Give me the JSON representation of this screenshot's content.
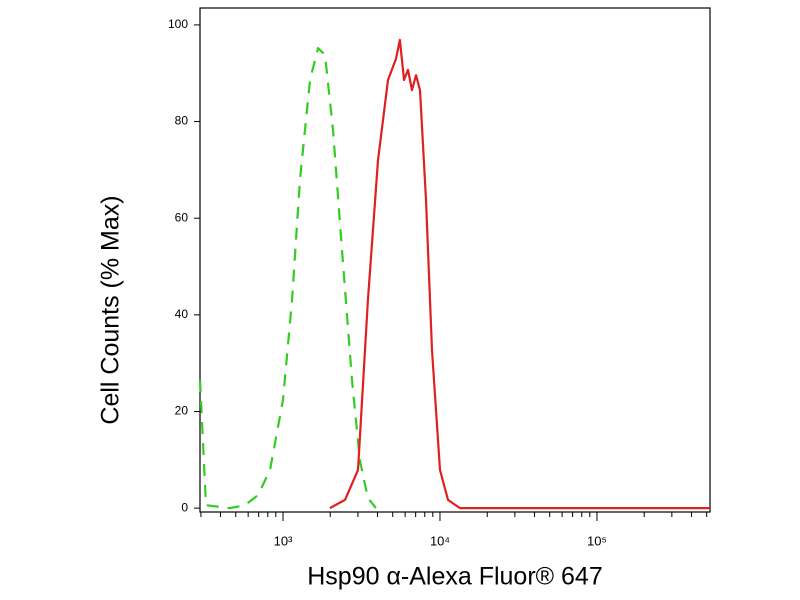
{
  "chart_data": {
    "type": "line",
    "xlabel": "Hsp90 α-Alexa Fluor® 647",
    "ylabel": "Cell Counts (% Max)",
    "xscale": "log",
    "xlim": [
      296,
      525000
    ],
    "ylim": [
      -0.8,
      103.5
    ],
    "xticks": [
      {
        "value": 1000,
        "label": "10³"
      },
      {
        "value": 10000,
        "label": "10⁴"
      },
      {
        "value": 100000,
        "label": "10⁵"
      }
    ],
    "xminorticks": [
      300,
      400,
      500,
      600,
      700,
      800,
      900,
      2000,
      3000,
      4000,
      5000,
      6000,
      7000,
      8000,
      9000,
      20000,
      30000,
      40000,
      50000,
      60000,
      70000,
      80000,
      90000,
      200000,
      300000,
      400000,
      500000
    ],
    "yticks": [
      0,
      20,
      40,
      60,
      80,
      100
    ],
    "series": [
      {
        "color": "#33cc22",
        "dashed": true,
        "x": [
          296,
          309,
          323,
          459,
          573,
          693,
          827,
          1000,
          1141,
          1283,
          1486,
          1670,
          1852,
          2081,
          2375,
          2750,
          3090,
          3475,
          3907
        ],
        "values": [
          26.5,
          14,
          0.6,
          0,
          0.6,
          2.7,
          7.9,
          22.4,
          43,
          68,
          88.6,
          95.2,
          93.8,
          78.3,
          53.4,
          26.5,
          9.9,
          2.1,
          0
        ]
      },
      {
        "color": "#e02020",
        "dashed": false,
        "x": [
          1991,
          2483,
          3005,
          3475,
          4027,
          4667,
          5248,
          5559,
          5902,
          6253,
          6637,
          7035,
          7459,
          8150,
          8892,
          10000,
          11250,
          13400,
          525000
        ],
        "values": [
          0,
          1.7,
          7.9,
          43,
          72,
          88.6,
          93,
          96.9,
          88.6,
          90.7,
          86.5,
          89.6,
          86.5,
          63.8,
          32.7,
          7.9,
          1.7,
          0,
          0
        ]
      }
    ]
  }
}
